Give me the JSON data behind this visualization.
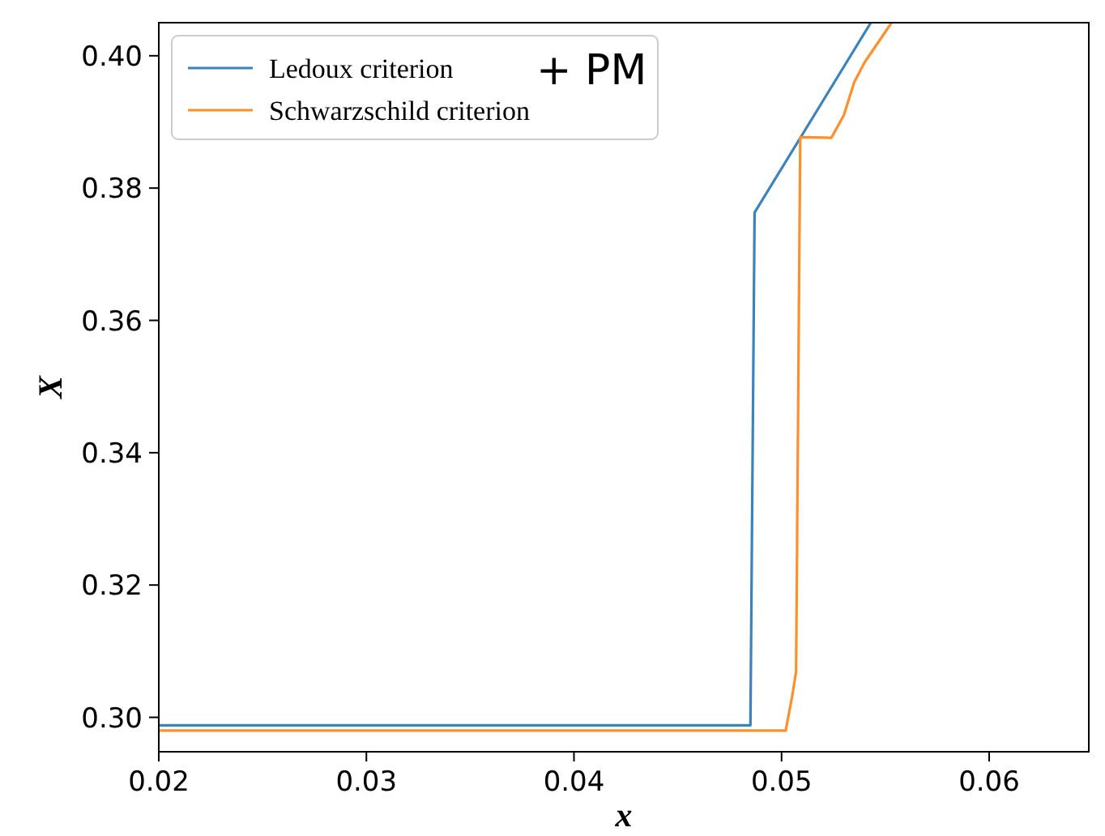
{
  "chart_data": {
    "type": "line",
    "xlabel": "x",
    "ylabel": "X",
    "xlim": [
      0.02,
      0.0648
    ],
    "ylim": [
      0.2948,
      0.405
    ],
    "xticks": [
      0.02,
      0.03,
      0.04,
      0.05,
      0.06
    ],
    "yticks": [
      {
        "value": 0.3,
        "label": "0.30"
      },
      {
        "value": 0.32,
        "label": "0.32"
      },
      {
        "value": 0.34,
        "label": "0.34"
      },
      {
        "value": 0.36,
        "label": "0.36"
      },
      {
        "value": 0.38,
        "label": "0.38"
      },
      {
        "value": 0.4,
        "label": "0.40"
      }
    ],
    "legend": "top left",
    "grid": false,
    "annotations": [
      "+ PM"
    ],
    "series": [
      {
        "name": "Ledoux criterion",
        "color": "#3b83bd",
        "x": [
          0.02,
          0.0485,
          0.0487,
          0.0543
        ],
        "values": [
          0.2988,
          0.2988,
          0.3763,
          0.405
        ]
      },
      {
        "name": "Schwarzschild criterion",
        "color": "#ff8f2a",
        "x": [
          0.02,
          0.0502,
          0.0505,
          0.0507,
          0.0507,
          0.0509,
          0.0524,
          0.053,
          0.0535,
          0.054,
          0.0553
        ],
        "values": [
          0.298,
          0.298,
          0.303,
          0.3069,
          0.3069,
          0.3877,
          0.3876,
          0.391,
          0.396,
          0.399,
          0.405
        ]
      }
    ]
  }
}
